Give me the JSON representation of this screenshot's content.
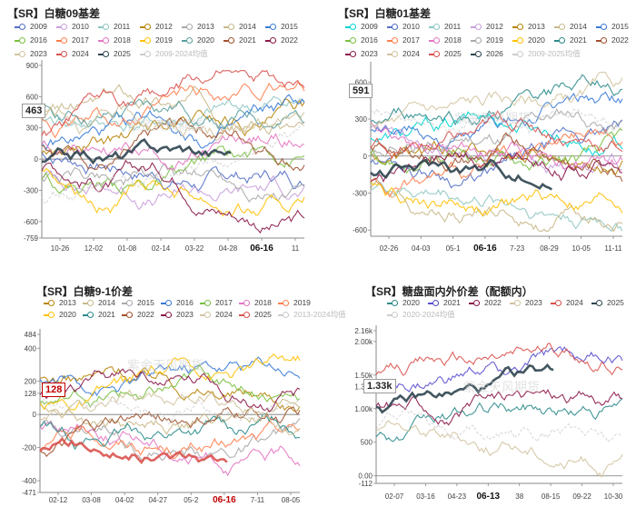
{
  "chart_data": [
    {
      "type": "line",
      "title": "【SR】白糖09基差",
      "ylim": [
        -759,
        900
      ],
      "yticks": [
        "900",
        "600",
        "300",
        "0",
        "-300",
        "-600",
        "-759"
      ],
      "xticks": [
        "10-26",
        "12-02",
        "01-08",
        "02-14",
        "03-22",
        "04-28",
        "06-16",
        "11"
      ],
      "highlight_x": "06-16",
      "current_value": "463",
      "series": [
        {
          "name": "2009",
          "color": "#5470c6"
        },
        {
          "name": "2010",
          "color": "#c9a0dc"
        },
        {
          "name": "2011",
          "color": "#8fc7c2"
        },
        {
          "name": "2012",
          "color": "#b8860b"
        },
        {
          "name": "2013",
          "color": "#a9a9a9"
        },
        {
          "name": "2014",
          "color": "#c8b88a"
        },
        {
          "name": "2015",
          "color": "#3a7bd5"
        },
        {
          "name": "2016",
          "color": "#7bc043"
        },
        {
          "name": "2017",
          "color": "#ff7f50"
        },
        {
          "name": "2018",
          "color": "#e377c2"
        },
        {
          "name": "2019",
          "color": "#ffc107"
        },
        {
          "name": "2020",
          "color": "#5a9e9e"
        },
        {
          "name": "2021",
          "color": "#a0522d"
        },
        {
          "name": "2022",
          "color": "#8b1a4a"
        },
        {
          "name": "2023",
          "color": "#d2c4a0"
        },
        {
          "name": "2024",
          "color": "#d9534f"
        },
        {
          "name": "2025",
          "color": "#2f4550"
        },
        {
          "name": "2009-2024均值",
          "color": "#cccccc",
          "dashed": true
        }
      ]
    },
    {
      "type": "line",
      "title": "【SR】白糖01基差",
      "ylim": [
        -650,
        720
      ],
      "yticks": [
        "600",
        "300",
        "0",
        "-300",
        "-600"
      ],
      "xticks": [
        "02-26",
        "04-03",
        "05-1",
        "06-16",
        "7-23",
        "08-29",
        "10-05",
        "11-11"
      ],
      "highlight_x": "06-16",
      "current_value": "591",
      "series": [
        {
          "name": "2009",
          "color": "#00d4d4"
        },
        {
          "name": "2010",
          "color": "#5470c6"
        },
        {
          "name": "2011",
          "color": "#8fc7c2"
        },
        {
          "name": "2012",
          "color": "#c9a0dc"
        },
        {
          "name": "2013",
          "color": "#b8860b"
        },
        {
          "name": "2014",
          "color": "#c8b88a"
        },
        {
          "name": "2015",
          "color": "#3a7bd5"
        },
        {
          "name": "2016",
          "color": "#7bc043"
        },
        {
          "name": "2017",
          "color": "#ff7f50"
        },
        {
          "name": "2018",
          "color": "#e377c2"
        },
        {
          "name": "2019",
          "color": "#a9a9a9"
        },
        {
          "name": "2020",
          "color": "#ffc107"
        },
        {
          "name": "2021",
          "color": "#2e8b8b"
        },
        {
          "name": "2022",
          "color": "#a0522d"
        },
        {
          "name": "2023",
          "color": "#8b1a4a"
        },
        {
          "name": "2024",
          "color": "#d2c4a0"
        },
        {
          "name": "2025",
          "color": "#d9534f"
        },
        {
          "name": "2026",
          "color": "#2f4550"
        },
        {
          "name": "2009-2025均值",
          "color": "#cccccc",
          "dashed": true
        }
      ]
    },
    {
      "type": "line",
      "title": "【SR】白糖9-1价差",
      "ylim": [
        -471,
        484
      ],
      "yticks": [
        "484",
        "400",
        "200",
        "128",
        "0",
        "-200",
        "-400",
        "-471"
      ],
      "xticks": [
        "02-12",
        "03-08",
        "04-02",
        "04-27",
        "05-2",
        "06-16",
        "7-11",
        "08-05"
      ],
      "highlight_x": "06-16",
      "current_value": "128",
      "series": [
        {
          "name": "2013",
          "color": "#b8860b"
        },
        {
          "name": "2014",
          "color": "#c8b88a"
        },
        {
          "name": "2015",
          "color": "#a9a9a9"
        },
        {
          "name": "2016",
          "color": "#3a7bd5"
        },
        {
          "name": "2017",
          "color": "#7bc043"
        },
        {
          "name": "2018",
          "color": "#e377c2"
        },
        {
          "name": "2019",
          "color": "#ff7f50"
        },
        {
          "name": "2020",
          "color": "#ffc107"
        },
        {
          "name": "2021",
          "color": "#2e8b8b"
        },
        {
          "name": "2022",
          "color": "#a0522d"
        },
        {
          "name": "2023",
          "color": "#8b1a4a"
        },
        {
          "name": "2024",
          "color": "#d2c4a0"
        },
        {
          "name": "2025",
          "color": "#d9534f"
        },
        {
          "name": "2013-2024均值",
          "color": "#cccccc",
          "dashed": true
        }
      ]
    },
    {
      "type": "line",
      "title": "【SR】糖盘面内外价差（配额内）",
      "ylim": [
        -112,
        2160
      ],
      "yticks": [
        "2.16k",
        "2.00k",
        "1.50k",
        "1.33k",
        "1.00k",
        "500",
        "0.00",
        "-112"
      ],
      "xticks": [
        "02-07",
        "03-16",
        "04-23",
        "06-13",
        "38",
        "08-15",
        "09-22",
        "10-30"
      ],
      "highlight_x": "06-13",
      "current_value": "1.33k",
      "series": [
        {
          "name": "2020",
          "color": "#2e8b8b"
        },
        {
          "name": "2021",
          "color": "#5a4fcf"
        },
        {
          "name": "2022",
          "color": "#8b1a4a"
        },
        {
          "name": "2023",
          "color": "#d2c4a0"
        },
        {
          "name": "2024",
          "color": "#d9534f"
        },
        {
          "name": "2025",
          "color": "#2f4550"
        },
        {
          "name": "2020-2024均值",
          "color": "#cccccc",
          "dashed": true
        }
      ]
    }
  ],
  "watermark": "紫金天风期货"
}
